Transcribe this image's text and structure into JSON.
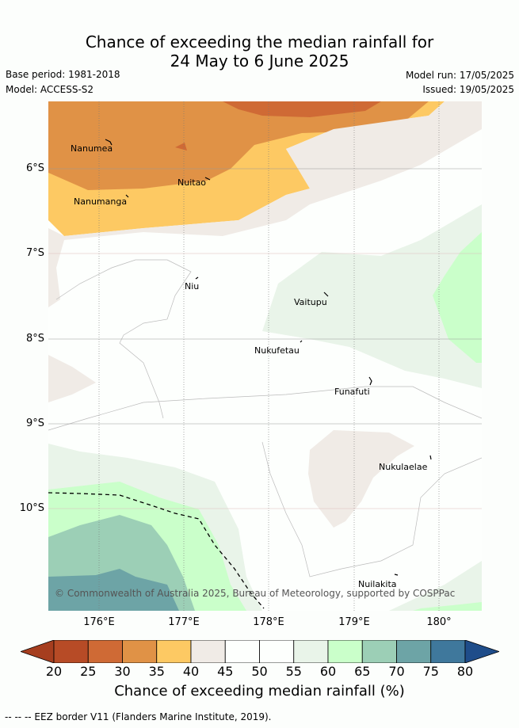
{
  "title_line1": "Chance of exceeding the median rainfall for",
  "title_line2": "24 May to 6 June 2025",
  "base_period": "Base period: 1981-2018",
  "model": "Model: ACCESS-S2",
  "model_run": "Model run: 17/05/2025",
  "issued": "Issued: 19/05/2025",
  "lat_labels": [
    "6°S",
    "7°S",
    "8°S",
    "9°S",
    "10°S"
  ],
  "lon_labels": [
    "176°E",
    "177°E",
    "178°E",
    "179°E",
    "180°"
  ],
  "places": [
    "Nanumea",
    "Nuitao",
    "Nanumanga",
    "Niu",
    "Vaitupu",
    "Nukufetau",
    "Funafuti",
    "Nukulaelae",
    "Nuilakita"
  ],
  "copyright": "© Commonwealth of Australia 2025, Bureau of Meteorology, supported by COSPPac",
  "colorbar": {
    "ticks": [
      "20",
      "25",
      "30",
      "35",
      "40",
      "45",
      "50",
      "55",
      "60",
      "65",
      "70",
      "75",
      "80"
    ],
    "colors": [
      "#a63e1f",
      "#b74b26",
      "#cf6a35",
      "#e09246",
      "#fdc963",
      "#f0ebe6",
      "#fdfffd",
      "#fdfffd",
      "#e9f4e9",
      "#caffca",
      "#9ccfb6",
      "#6da4a6",
      "#3f789c",
      "#1f4d8a"
    ],
    "title": "Chance of exceeding median rainfall (%)"
  },
  "footer": "--  --  -- EEZ border V11 (Flanders Marine Institute, 2019)."
}
